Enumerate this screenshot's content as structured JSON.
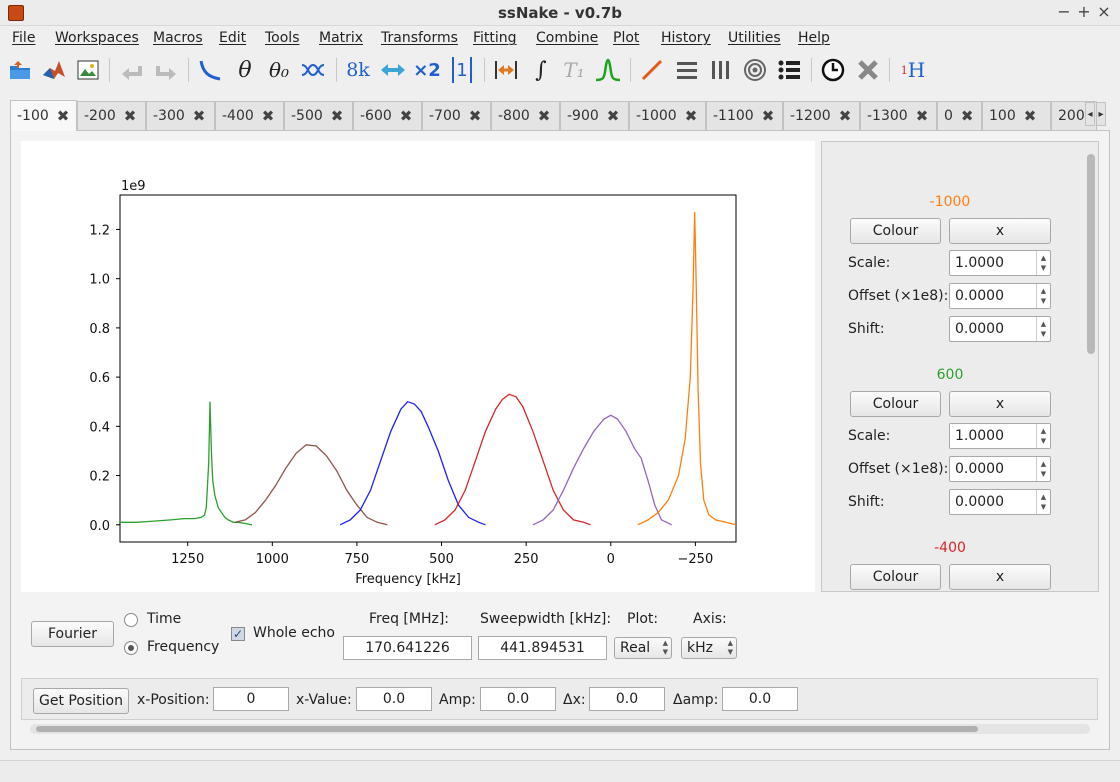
{
  "window": {
    "title": "ssNake - v0.7b"
  },
  "menu": [
    "File",
    "Workspaces",
    "Macros",
    "Edit",
    "Tools",
    "Matrix",
    "Transforms",
    "Fitting",
    "Combine",
    "Plot",
    "History",
    "Utilities",
    "Help"
  ],
  "toolbar": {
    "theta": "θ",
    "theta0": "θ₀",
    "eightk": "8k",
    "x2": "×2",
    "one": "1",
    "integral": "∫",
    "t1": "T₁",
    "sup1": "1",
    "h": "H"
  },
  "tabs": [
    {
      "label": "-100",
      "active": true
    },
    {
      "label": "-200"
    },
    {
      "label": "-300"
    },
    {
      "label": "-400"
    },
    {
      "label": "-500"
    },
    {
      "label": "-600"
    },
    {
      "label": "-700"
    },
    {
      "label": "-800"
    },
    {
      "label": "-900"
    },
    {
      "label": "-1000"
    },
    {
      "label": "-1100"
    },
    {
      "label": "-1200"
    },
    {
      "label": "-1300"
    },
    {
      "label": "0"
    },
    {
      "label": "100"
    },
    {
      "label": "200"
    }
  ],
  "tab_close": "✖",
  "chart_data": {
    "type": "line",
    "xlabel": "Frequency [kHz]",
    "ylabel": "",
    "offset_text": "1e9",
    "xlim": [
      1450,
      -370
    ],
    "ylim": [
      -0.07,
      1.34
    ],
    "x_reversed": true,
    "xticks": [
      1250,
      1000,
      750,
      500,
      250,
      0,
      -250
    ],
    "xtick_labels": [
      "1250",
      "1000",
      "750",
      "500",
      "250",
      "0",
      "−250"
    ],
    "yticks": [
      0.0,
      0.2,
      0.4,
      0.6,
      0.8,
      1.0,
      1.2
    ],
    "ytick_labels": [
      "0.0",
      "0.2",
      "0.4",
      "0.6",
      "0.8",
      "1.0",
      "1.2"
    ],
    "grid": false,
    "series": [
      {
        "color": "#2ca02c",
        "x": [
          1450,
          1400,
          1350,
          1300,
          1260,
          1230,
          1210,
          1200,
          1195,
          1188,
          1184,
          1180,
          1176,
          1170,
          1160,
          1150,
          1140,
          1130,
          1115,
          1100,
          1080,
          1060
        ],
        "y": [
          0.01,
          0.01,
          0.015,
          0.02,
          0.025,
          0.025,
          0.03,
          0.04,
          0.07,
          0.25,
          0.5,
          0.3,
          0.18,
          0.12,
          0.07,
          0.05,
          0.03,
          0.02,
          0.01,
          0.01,
          0.005,
          0.0
        ]
      },
      {
        "color": "#8c564b",
        "x": [
          1110,
          1080,
          1050,
          1020,
          990,
          960,
          930,
          900,
          870,
          840,
          810,
          780,
          750,
          720,
          690,
          660
        ],
        "y": [
          0.01,
          0.02,
          0.05,
          0.1,
          0.16,
          0.23,
          0.29,
          0.325,
          0.32,
          0.28,
          0.22,
          0.14,
          0.08,
          0.03,
          0.01,
          0.0
        ]
      },
      {
        "color": "#1f1fff",
        "x": [
          800,
          770,
          740,
          710,
          680,
          650,
          620,
          600,
          580,
          560,
          540,
          510,
          480,
          450,
          420,
          390,
          370
        ],
        "y": [
          0.0,
          0.02,
          0.06,
          0.14,
          0.26,
          0.38,
          0.47,
          0.5,
          0.49,
          0.46,
          0.4,
          0.3,
          0.18,
          0.08,
          0.03,
          0.01,
          0.0
        ]
      },
      {
        "color": "#d62728",
        "x": [
          520,
          490,
          460,
          430,
          400,
          370,
          340,
          320,
          300,
          280,
          260,
          230,
          200,
          170,
          140,
          110,
          80,
          60
        ],
        "y": [
          0.0,
          0.02,
          0.06,
          0.14,
          0.26,
          0.38,
          0.47,
          0.51,
          0.53,
          0.52,
          0.48,
          0.38,
          0.26,
          0.14,
          0.06,
          0.02,
          0.01,
          0.0
        ]
      },
      {
        "color": "#9467bd",
        "x": [
          230,
          200,
          170,
          140,
          110,
          80,
          50,
          20,
          0,
          -20,
          -45,
          -70,
          -90,
          -110,
          -130,
          -150,
          -180
        ],
        "y": [
          0.0,
          0.02,
          0.06,
          0.14,
          0.23,
          0.31,
          0.38,
          0.43,
          0.445,
          0.43,
          0.38,
          0.31,
          0.27,
          0.18,
          0.08,
          0.02,
          0.0
        ]
      },
      {
        "color": "#ff7f0e",
        "x": [
          -80,
          -110,
          -140,
          -170,
          -200,
          -220,
          -235,
          -243,
          -248,
          -252,
          -258,
          -265,
          -275,
          -290,
          -310,
          -340,
          -370
        ],
        "y": [
          0.0,
          0.02,
          0.05,
          0.1,
          0.2,
          0.35,
          0.6,
          0.95,
          1.27,
          1.0,
          0.55,
          0.25,
          0.1,
          0.04,
          0.02,
          0.01,
          0.0
        ]
      }
    ]
  },
  "side": {
    "groups": [
      {
        "name": "-1000",
        "color": "#ff7f0e",
        "scale": "1.0000",
        "offset": "0.0000",
        "shift": "0.0000"
      },
      {
        "name": "600",
        "color": "#2ca02c",
        "scale": "1.0000",
        "offset": "0.0000",
        "shift": "0.0000"
      },
      {
        "name": "-400",
        "color": "#d62728"
      }
    ],
    "colour_label": "Colour",
    "remove_label": "x",
    "scale_label": "Scale:",
    "offset_label": "Offset (×1e8):",
    "shift_label": "Shift:"
  },
  "controls": {
    "fourier": "Fourier",
    "time": "Time",
    "frequency": "Frequency",
    "whole_echo": "Whole echo",
    "freq_label": "Freq [MHz]:",
    "freq_value": "170.641226",
    "sw_label": "Sweepwidth [kHz]:",
    "sw_value": "441.894531",
    "plot_label": "Plot:",
    "plot_value": "Real",
    "axis_label": "Axis:",
    "axis_value": "kHz"
  },
  "position": {
    "get_position": "Get Position",
    "xpos_label": "x-Position:",
    "xpos": "0",
    "xval_label": "x-Value:",
    "xval": "0.0",
    "amp_label": "Amp:",
    "amp": "0.0",
    "dx_label": "Δx:",
    "dx": "0.0",
    "damp_label": "Δamp:",
    "damp": "0.0"
  }
}
